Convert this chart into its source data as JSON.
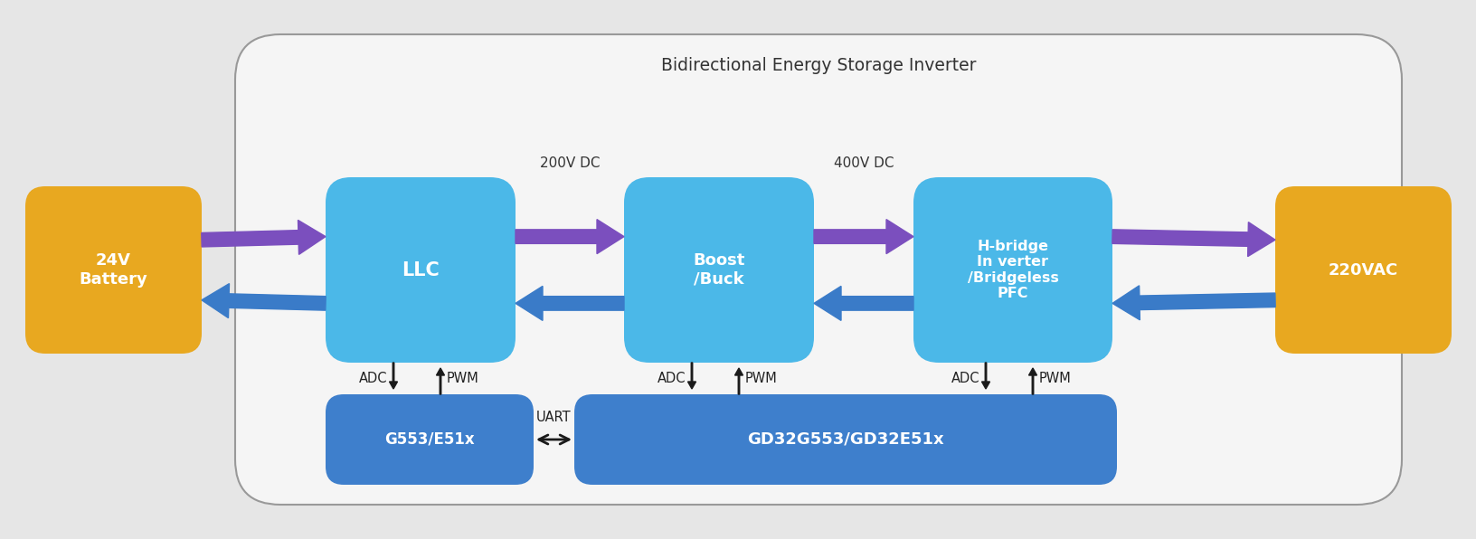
{
  "bg_color": "#e6e6e6",
  "box_color_gold": "#E8A820",
  "box_color_blue_light": "#4BB8E8",
  "box_color_blue_dark": "#3E7FCC",
  "arrow_color_purple": "#7B4FBE",
  "arrow_color_blue": "#3A7BC8",
  "arrow_color_black": "#1a1a1a",
  "outer_box_color": "#f5f5f5",
  "outer_box_edge": "#999999",
  "title": "Bidirectional Energy Storage Inverter",
  "battery_label": "24V\nBattery",
  "ac_label": "220VAC",
  "llc_label": "LLC",
  "boost_label": "Boost\n/Buck",
  "hbridge_label": "H-bridge\nIn verter\n/Bridgeless\nPFC",
  "g553_label": "G553/E51x",
  "gd32_label": "GD32G553/GD32E51x",
  "label_200v": "200V DC",
  "label_400v": "400V DC",
  "uart_label": "UART",
  "adc_label": "ADC",
  "pwm_label": "PWM"
}
